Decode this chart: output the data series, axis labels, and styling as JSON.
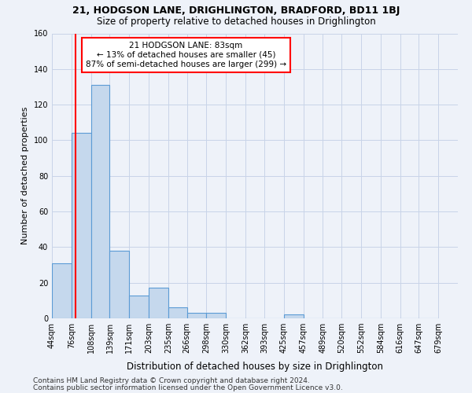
{
  "title1": "21, HODGSON LANE, DRIGHLINGTON, BRADFORD, BD11 1BJ",
  "title2": "Size of property relative to detached houses in Drighlington",
  "xlabel": "Distribution of detached houses by size in Drighlington",
  "ylabel": "Number of detached properties",
  "bar_edges": [
    44,
    76,
    108,
    139,
    171,
    203,
    235,
    266,
    298,
    330,
    362,
    393,
    425,
    457,
    489,
    520,
    552,
    584,
    616,
    647,
    679
  ],
  "bar_heights": [
    31,
    104,
    131,
    38,
    13,
    17,
    6,
    3,
    3,
    0,
    0,
    0,
    2,
    0,
    0,
    0,
    0,
    0,
    0,
    0
  ],
  "bar_color": "#c5d8ed",
  "bar_edge_color": "#5b9bd5",
  "red_line_x": 83,
  "annotation_line1": "21 HODGSON LANE: 83sqm",
  "annotation_line2": "← 13% of detached houses are smaller (45)",
  "annotation_line3": "87% of semi-detached houses are larger (299) →",
  "annotation_box_color": "white",
  "annotation_box_edge_color": "red",
  "ylim": [
    0,
    160
  ],
  "yticks": [
    0,
    20,
    40,
    60,
    80,
    100,
    120,
    140,
    160
  ],
  "footer1": "Contains HM Land Registry data © Crown copyright and database right 2024.",
  "footer2": "Contains public sector information licensed under the Open Government Licence v3.0.",
  "bg_color": "#eef2f9",
  "grid_color": "#c8d4e8",
  "title1_fontsize": 9,
  "title2_fontsize": 8.5,
  "xlabel_fontsize": 8.5,
  "ylabel_fontsize": 8,
  "annotation_fontsize": 7.5,
  "footer_fontsize": 6.5,
  "tick_fontsize": 7
}
